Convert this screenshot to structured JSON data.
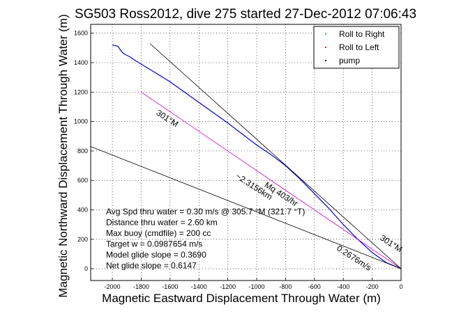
{
  "chart_data": {
    "type": "line",
    "title": "SG503 Ross2012, dive 275 started 27-Dec-2012 07:06:43",
    "xlabel": "Magnetic Eastward Displacement Through Water (m)",
    "ylabel": "Magnetic Northward Displacement Through Water (m)",
    "xlim": [
      -2150,
      0
    ],
    "ylim": [
      -80,
      1660
    ],
    "x_ticks": [
      -2000,
      -1800,
      -1600,
      -1400,
      -1200,
      -1000,
      -800,
      -600,
      -400,
      -200,
      0
    ],
    "y_ticks": [
      0,
      200,
      400,
      600,
      800,
      1000,
      1200,
      1400,
      1600
    ],
    "grid": true,
    "legend_position": "top-right",
    "legend": [
      {
        "label": "Roll to Right",
        "color": "#00cc00"
      },
      {
        "label": "Roll to Left",
        "color": "#ff0000"
      },
      {
        "label": "pump",
        "color": "#000000"
      }
    ],
    "series": [
      {
        "color": "#0000cc",
        "x": [
          -2000,
          -1960,
          -1940,
          -1920,
          -1900,
          -1880,
          -1850,
          -1800,
          -1700,
          -1600,
          -1500,
          -1400,
          -1300,
          -1200,
          -1100,
          -1000,
          -900,
          -800,
          -700,
          -600,
          -500,
          -400,
          -300,
          -200,
          -100,
          0
        ],
        "y": [
          1520,
          1510,
          1480,
          1460,
          1450,
          1440,
          1420,
          1390,
          1330,
          1270,
          1200,
          1130,
          1060,
          990,
          915,
          840,
          775,
          700,
          610,
          510,
          410,
          300,
          200,
          110,
          40,
          0
        ]
      },
      {
        "color": "#cc00cc",
        "x": [
          -1800,
          0
        ],
        "y": [
          1200,
          0
        ]
      },
      {
        "color": "#000000",
        "x": [
          -1740,
          0
        ],
        "y": [
          1530,
          0
        ]
      },
      {
        "color": "#000000",
        "x": [
          -2150,
          0
        ],
        "y": [
          830,
          0
        ]
      }
    ],
    "rotated_labels": [
      {
        "text": "301°M",
        "x": -1700,
        "y": 1050,
        "angle": 33
      },
      {
        "text": "~2.3156km",
        "x": -1150,
        "y": 620,
        "angle": 33
      },
      {
        "text": "Mq 403/hr",
        "x": -950,
        "y": 560,
        "angle": 33
      },
      {
        "text": "0.2676m/s",
        "x": -450,
        "y": 130,
        "angle": 33
      },
      {
        "text": "301°M",
        "x": -150,
        "y": 200,
        "angle": 33
      }
    ],
    "annotations": [
      "Avg Spd thru water =  0.30 m/s @ 305.7 °M (321.7 °T)",
      "Distance thru water =  2.60 km",
      "Max buoy (cmdfile) = 200 cc",
      "Target w = 0.0987654 m/s",
      "Model glide slope = 0.3690",
      "Net glide slope = 0.6147"
    ]
  }
}
